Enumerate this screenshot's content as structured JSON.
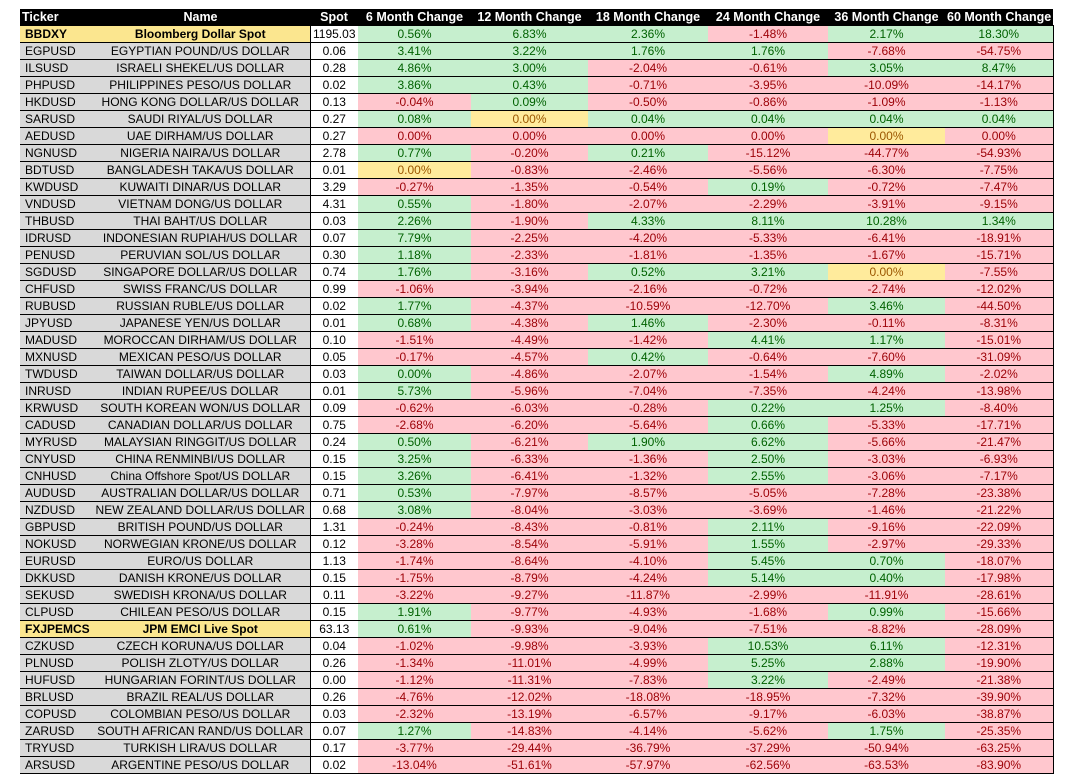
{
  "headers": [
    "Ticker",
    "Name",
    "Spot",
    "6 Month Change",
    "12 Month Change",
    "18 Month Change",
    "24 Month Change",
    "36 Month Change",
    "60 Month Change"
  ],
  "colors": {
    "positive": "#c6efce",
    "negative": "#ffc7ce",
    "neutral": "#ffeb9c",
    "highlight": "#fbe68f"
  },
  "rows": [
    {
      "ticker": "BBDXY",
      "name": "Bloomberg Dollar Spot",
      "spot": "1195.03",
      "changes": [
        "0.56%",
        "6.83%",
        "2.36%",
        "-1.48%",
        "2.17%",
        "18.30%"
      ],
      "shade": [
        "pos",
        "pos",
        "pos",
        "neg",
        "pos",
        "pos"
      ],
      "highlight": true
    },
    {
      "ticker": "EGPUSD",
      "name": "EGYPTIAN POUND/US DOLLAR",
      "spot": "0.06",
      "changes": [
        "3.41%",
        "3.22%",
        "1.76%",
        "1.76%",
        "-7.68%",
        "-54.75%"
      ],
      "shade": [
        "pos",
        "pos",
        "pos",
        "pos",
        "neg",
        "neg"
      ]
    },
    {
      "ticker": "ILSUSD",
      "name": "ISRAELI SHEKEL/US DOLLAR",
      "spot": "0.28",
      "changes": [
        "4.86%",
        "3.00%",
        "-2.04%",
        "-0.61%",
        "3.05%",
        "8.47%"
      ],
      "shade": [
        "pos",
        "pos",
        "neg",
        "neg",
        "pos",
        "pos"
      ]
    },
    {
      "ticker": "PHPUSD",
      "name": "PHILIPPINES PESO/US DOLLAR",
      "spot": "0.02",
      "changes": [
        "3.86%",
        "0.43%",
        "-0.71%",
        "-3.95%",
        "-10.09%",
        "-14.17%"
      ],
      "shade": [
        "pos",
        "pos",
        "neg",
        "neg",
        "neg",
        "neg"
      ]
    },
    {
      "ticker": "HKDUSD",
      "name": "HONG KONG DOLLAR/US DOLLAR",
      "spot": "0.13",
      "changes": [
        "-0.04%",
        "0.09%",
        "-0.50%",
        "-0.86%",
        "-1.09%",
        "-1.13%"
      ],
      "shade": [
        "neg",
        "pos",
        "neg",
        "neg",
        "neg",
        "neg"
      ]
    },
    {
      "ticker": "SARUSD",
      "name": "SAUDI RIYAL/US DOLLAR",
      "spot": "0.27",
      "changes": [
        "0.08%",
        "0.00%",
        "0.04%",
        "0.04%",
        "0.04%",
        "0.04%"
      ],
      "shade": [
        "pos",
        "zero",
        "pos",
        "pos",
        "pos",
        "pos"
      ]
    },
    {
      "ticker": "AEDUSD",
      "name": "UAE DIRHAM/US DOLLAR",
      "spot": "0.27",
      "changes": [
        "0.00%",
        "0.00%",
        "0.00%",
        "0.00%",
        "0.00%",
        "0.00%"
      ],
      "shade": [
        "neg",
        "neg",
        "neg",
        "neg",
        "zero",
        "neg"
      ]
    },
    {
      "ticker": "NGNUSD",
      "name": "NIGERIA NAIRA/US DOLLAR",
      "spot": "2.78",
      "changes": [
        "0.77%",
        "-0.20%",
        "0.21%",
        "-15.12%",
        "-44.77%",
        "-54.93%"
      ],
      "shade": [
        "pos",
        "neg",
        "pos",
        "neg",
        "neg",
        "neg"
      ]
    },
    {
      "ticker": "BDTUSD",
      "name": "BANGLADESH TAKA/US DOLLAR",
      "spot": "0.01",
      "changes": [
        "0.00%",
        "-0.83%",
        "-2.46%",
        "-5.56%",
        "-6.30%",
        "-7.75%"
      ],
      "shade": [
        "zero",
        "neg",
        "neg",
        "neg",
        "neg",
        "neg"
      ]
    },
    {
      "ticker": "KWDUSD",
      "name": "KUWAITI DINAR/US DOLLAR",
      "spot": "3.29",
      "changes": [
        "-0.27%",
        "-1.35%",
        "-0.54%",
        "0.19%",
        "-0.72%",
        "-7.47%"
      ],
      "shade": [
        "neg",
        "neg",
        "neg",
        "pos",
        "neg",
        "neg"
      ]
    },
    {
      "ticker": "VNDUSD",
      "name": "VIETNAM DONG/US DOLLAR",
      "spot": "4.31",
      "changes": [
        "0.55%",
        "-1.80%",
        "-2.07%",
        "-2.29%",
        "-3.91%",
        "-9.15%"
      ],
      "shade": [
        "pos",
        "neg",
        "neg",
        "neg",
        "neg",
        "neg"
      ]
    },
    {
      "ticker": "THBUSD",
      "name": "THAI BAHT/US DOLLAR",
      "spot": "0.03",
      "changes": [
        "2.26%",
        "-1.90%",
        "4.33%",
        "8.11%",
        "10.28%",
        "1.34%"
      ],
      "shade": [
        "pos",
        "neg",
        "pos",
        "pos",
        "pos",
        "pos"
      ]
    },
    {
      "ticker": "IDRUSD",
      "name": "INDONESIAN RUPIAH/US DOLLAR",
      "spot": "0.07",
      "changes": [
        "7.79%",
        "-2.25%",
        "-4.20%",
        "-5.33%",
        "-6.41%",
        "-18.91%"
      ],
      "shade": [
        "pos",
        "neg",
        "neg",
        "neg",
        "neg",
        "neg"
      ]
    },
    {
      "ticker": "PENUSD",
      "name": "PERUVIAN SOL/US DOLLAR",
      "spot": "0.30",
      "changes": [
        "1.18%",
        "-2.33%",
        "-1.81%",
        "-1.35%",
        "-1.67%",
        "-15.71%"
      ],
      "shade": [
        "pos",
        "neg",
        "neg",
        "neg",
        "neg",
        "neg"
      ]
    },
    {
      "ticker": "SGDUSD",
      "name": "SINGAPORE DOLLAR/US DOLLAR",
      "spot": "0.74",
      "changes": [
        "1.76%",
        "-3.16%",
        "0.52%",
        "3.21%",
        "0.00%",
        "-7.55%"
      ],
      "shade": [
        "pos",
        "neg",
        "pos",
        "pos",
        "zero",
        "neg"
      ]
    },
    {
      "ticker": "CHFUSD",
      "name": "SWISS FRANC/US DOLLAR",
      "spot": "0.99",
      "changes": [
        "-1.06%",
        "-3.94%",
        "-2.16%",
        "-0.72%",
        "-2.74%",
        "-12.02%"
      ],
      "shade": [
        "neg",
        "neg",
        "neg",
        "neg",
        "neg",
        "neg"
      ]
    },
    {
      "ticker": "RUBUSD",
      "name": "RUSSIAN RUBLE/US DOLLAR",
      "spot": "0.02",
      "changes": [
        "1.77%",
        "-4.37%",
        "-10.59%",
        "-12.70%",
        "3.46%",
        "-44.50%"
      ],
      "shade": [
        "pos",
        "neg",
        "neg",
        "neg",
        "pos",
        "neg"
      ]
    },
    {
      "ticker": "JPYUSD",
      "name": "JAPANESE YEN/US DOLLAR",
      "spot": "0.01",
      "changes": [
        "0.68%",
        "-4.38%",
        "1.46%",
        "-2.30%",
        "-0.11%",
        "-8.31%"
      ],
      "shade": [
        "pos",
        "neg",
        "pos",
        "neg",
        "neg",
        "neg"
      ]
    },
    {
      "ticker": "MADUSD",
      "name": "MOROCCAN DIRHAM/US DOLLAR",
      "spot": "0.10",
      "changes": [
        "-1.51%",
        "-4.49%",
        "-1.42%",
        "4.41%",
        "1.17%",
        "-15.01%"
      ],
      "shade": [
        "neg",
        "neg",
        "neg",
        "pos",
        "pos",
        "neg"
      ]
    },
    {
      "ticker": "MXNUSD",
      "name": "MEXICAN PESO/US DOLLAR",
      "spot": "0.05",
      "changes": [
        "-0.17%",
        "-4.57%",
        "0.42%",
        "-0.64%",
        "-7.60%",
        "-31.09%"
      ],
      "shade": [
        "neg",
        "neg",
        "pos",
        "neg",
        "neg",
        "neg"
      ]
    },
    {
      "ticker": "TWDUSD",
      "name": "TAIWAN DOLLAR/US DOLLAR",
      "spot": "0.03",
      "changes": [
        "0.00%",
        "-4.86%",
        "-2.07%",
        "-1.54%",
        "4.89%",
        "-2.02%"
      ],
      "shade": [
        "pos",
        "neg",
        "neg",
        "neg",
        "pos",
        "neg"
      ]
    },
    {
      "ticker": "INRUSD",
      "name": "INDIAN RUPEE/US DOLLAR",
      "spot": "0.01",
      "changes": [
        "5.73%",
        "-5.96%",
        "-7.04%",
        "-7.35%",
        "-4.24%",
        "-13.98%"
      ],
      "shade": [
        "pos",
        "neg",
        "neg",
        "neg",
        "neg",
        "neg"
      ]
    },
    {
      "ticker": "KRWUSD",
      "name": "SOUTH KOREAN WON/US DOLLAR",
      "spot": "0.09",
      "changes": [
        "-0.62%",
        "-6.03%",
        "-0.28%",
        "0.22%",
        "1.25%",
        "-8.40%"
      ],
      "shade": [
        "neg",
        "neg",
        "neg",
        "pos",
        "pos",
        "neg"
      ]
    },
    {
      "ticker": "CADUSD",
      "name": "CANADIAN DOLLAR/US DOLLAR",
      "spot": "0.75",
      "changes": [
        "-2.68%",
        "-6.20%",
        "-5.64%",
        "0.66%",
        "-5.33%",
        "-17.71%"
      ],
      "shade": [
        "neg",
        "neg",
        "neg",
        "pos",
        "neg",
        "neg"
      ]
    },
    {
      "ticker": "MYRUSD",
      "name": "MALAYSIAN RINGGIT/US DOLLAR",
      "spot": "0.24",
      "changes": [
        "0.50%",
        "-6.21%",
        "1.90%",
        "6.62%",
        "-5.66%",
        "-21.47%"
      ],
      "shade": [
        "pos",
        "neg",
        "pos",
        "pos",
        "neg",
        "neg"
      ]
    },
    {
      "ticker": "CNYUSD",
      "name": "CHINA RENMINBI/US DOLLAR",
      "spot": "0.15",
      "changes": [
        "3.25%",
        "-6.33%",
        "-1.36%",
        "2.50%",
        "-3.03%",
        "-6.93%"
      ],
      "shade": [
        "pos",
        "neg",
        "neg",
        "pos",
        "neg",
        "neg"
      ]
    },
    {
      "ticker": "CNHUSD",
      "name": "China Offshore Spot/US DOLLAR",
      "spot": "0.15",
      "changes": [
        "3.26%",
        "-6.41%",
        "-1.32%",
        "2.55%",
        "-3.06%",
        "-7.17%"
      ],
      "shade": [
        "pos",
        "neg",
        "neg",
        "pos",
        "neg",
        "neg"
      ]
    },
    {
      "ticker": "AUDUSD",
      "name": "AUSTRALIAN DOLLAR/US DOLLAR",
      "spot": "0.71",
      "changes": [
        "0.53%",
        "-7.97%",
        "-8.57%",
        "-5.05%",
        "-7.28%",
        "-23.38%"
      ],
      "shade": [
        "pos",
        "neg",
        "neg",
        "neg",
        "neg",
        "neg"
      ]
    },
    {
      "ticker": "NZDUSD",
      "name": "NEW ZEALAND DOLLAR/US DOLLAR",
      "spot": "0.68",
      "changes": [
        "3.08%",
        "-8.04%",
        "-3.03%",
        "-3.69%",
        "-1.46%",
        "-21.22%"
      ],
      "shade": [
        "pos",
        "neg",
        "neg",
        "neg",
        "neg",
        "neg"
      ]
    },
    {
      "ticker": "GBPUSD",
      "name": "BRITISH POUND/US DOLLAR",
      "spot": "1.31",
      "changes": [
        "-0.24%",
        "-8.43%",
        "-0.81%",
        "2.11%",
        "-9.16%",
        "-22.09%"
      ],
      "shade": [
        "neg",
        "neg",
        "neg",
        "pos",
        "neg",
        "neg"
      ]
    },
    {
      "ticker": "NOKUSD",
      "name": "NORWEGIAN KRONE/US DOLLAR",
      "spot": "0.12",
      "changes": [
        "-3.28%",
        "-8.54%",
        "-5.91%",
        "1.55%",
        "-2.97%",
        "-29.33%"
      ],
      "shade": [
        "neg",
        "neg",
        "neg",
        "pos",
        "neg",
        "neg"
      ]
    },
    {
      "ticker": "EURUSD",
      "name": "EURO/US DOLLAR",
      "spot": "1.13",
      "changes": [
        "-1.74%",
        "-8.64%",
        "-4.10%",
        "5.45%",
        "0.70%",
        "-18.07%"
      ],
      "shade": [
        "neg",
        "neg",
        "neg",
        "pos",
        "pos",
        "neg"
      ]
    },
    {
      "ticker": "DKKUSD",
      "name": "DANISH KRONE/US DOLLAR",
      "spot": "0.15",
      "changes": [
        "-1.75%",
        "-8.79%",
        "-4.24%",
        "5.14%",
        "0.40%",
        "-17.98%"
      ],
      "shade": [
        "neg",
        "neg",
        "neg",
        "pos",
        "pos",
        "neg"
      ]
    },
    {
      "ticker": "SEKUSD",
      "name": "SWEDISH KRONA/US DOLLAR",
      "spot": "0.11",
      "changes": [
        "-3.22%",
        "-9.27%",
        "-11.87%",
        "-2.99%",
        "-11.91%",
        "-28.61%"
      ],
      "shade": [
        "neg",
        "neg",
        "neg",
        "neg",
        "neg",
        "neg"
      ]
    },
    {
      "ticker": "CLPUSD",
      "name": "CHILEAN PESO/US DOLLAR",
      "spot": "0.15",
      "changes": [
        "1.91%",
        "-9.77%",
        "-4.93%",
        "-1.68%",
        "0.99%",
        "-15.66%"
      ],
      "shade": [
        "pos",
        "neg",
        "neg",
        "neg",
        "pos",
        "neg"
      ]
    },
    {
      "ticker": "FXJPEMCS",
      "name": "JPM EMCI Live Spot",
      "spot": "63.13",
      "changes": [
        "0.61%",
        "-9.93%",
        "-9.04%",
        "-7.51%",
        "-8.82%",
        "-28.09%"
      ],
      "shade": [
        "pos",
        "neg",
        "neg",
        "neg",
        "neg",
        "neg"
      ],
      "highlight": true
    },
    {
      "ticker": "CZKUSD",
      "name": "CZECH KORUNA/US DOLLAR",
      "spot": "0.04",
      "changes": [
        "-1.02%",
        "-9.98%",
        "-3.93%",
        "10.53%",
        "6.11%",
        "-12.31%"
      ],
      "shade": [
        "neg",
        "neg",
        "neg",
        "pos",
        "pos",
        "neg"
      ]
    },
    {
      "ticker": "PLNUSD",
      "name": "POLISH ZLOTY/US DOLLAR",
      "spot": "0.26",
      "changes": [
        "-1.34%",
        "-11.01%",
        "-4.99%",
        "5.25%",
        "2.88%",
        "-19.90%"
      ],
      "shade": [
        "neg",
        "neg",
        "neg",
        "pos",
        "pos",
        "neg"
      ]
    },
    {
      "ticker": "HUFUSD",
      "name": "HUNGARIAN FORINT/US DOLLAR",
      "spot": "0.00",
      "changes": [
        "-1.12%",
        "-11.31%",
        "-7.83%",
        "3.22%",
        "-2.49%",
        "-21.38%"
      ],
      "shade": [
        "neg",
        "neg",
        "neg",
        "pos",
        "neg",
        "neg"
      ]
    },
    {
      "ticker": "BRLUSD",
      "name": "BRAZIL REAL/US DOLLAR",
      "spot": "0.26",
      "changes": [
        "-4.76%",
        "-12.02%",
        "-18.08%",
        "-18.95%",
        "-7.32%",
        "-39.90%"
      ],
      "shade": [
        "neg",
        "neg",
        "neg",
        "neg",
        "neg",
        "neg"
      ]
    },
    {
      "ticker": "COPUSD",
      "name": "COLOMBIAN PESO/US DOLLAR",
      "spot": "0.03",
      "changes": [
        "-2.32%",
        "-13.19%",
        "-6.57%",
        "-9.17%",
        "-6.03%",
        "-38.87%"
      ],
      "shade": [
        "neg",
        "neg",
        "neg",
        "neg",
        "neg",
        "neg"
      ]
    },
    {
      "ticker": "ZARUSD",
      "name": "SOUTH AFRICAN RAND/US DOLLAR",
      "spot": "0.07",
      "changes": [
        "1.27%",
        "-14.83%",
        "-4.14%",
        "-5.62%",
        "1.75%",
        "-25.35%"
      ],
      "shade": [
        "pos",
        "neg",
        "neg",
        "neg",
        "pos",
        "neg"
      ]
    },
    {
      "ticker": "TRYUSD",
      "name": "TURKISH LIRA/US DOLLAR",
      "spot": "0.17",
      "changes": [
        "-3.77%",
        "-29.44%",
        "-36.79%",
        "-37.29%",
        "-50.94%",
        "-63.25%"
      ],
      "shade": [
        "neg",
        "neg",
        "neg",
        "neg",
        "neg",
        "neg"
      ]
    },
    {
      "ticker": "ARSUSD",
      "name": "ARGENTINE PESO/US DOLLAR",
      "spot": "0.02",
      "changes": [
        "-13.04%",
        "-51.61%",
        "-57.97%",
        "-62.56%",
        "-63.53%",
        "-83.90%"
      ],
      "shade": [
        "neg",
        "neg",
        "neg",
        "neg",
        "neg",
        "neg"
      ]
    }
  ]
}
